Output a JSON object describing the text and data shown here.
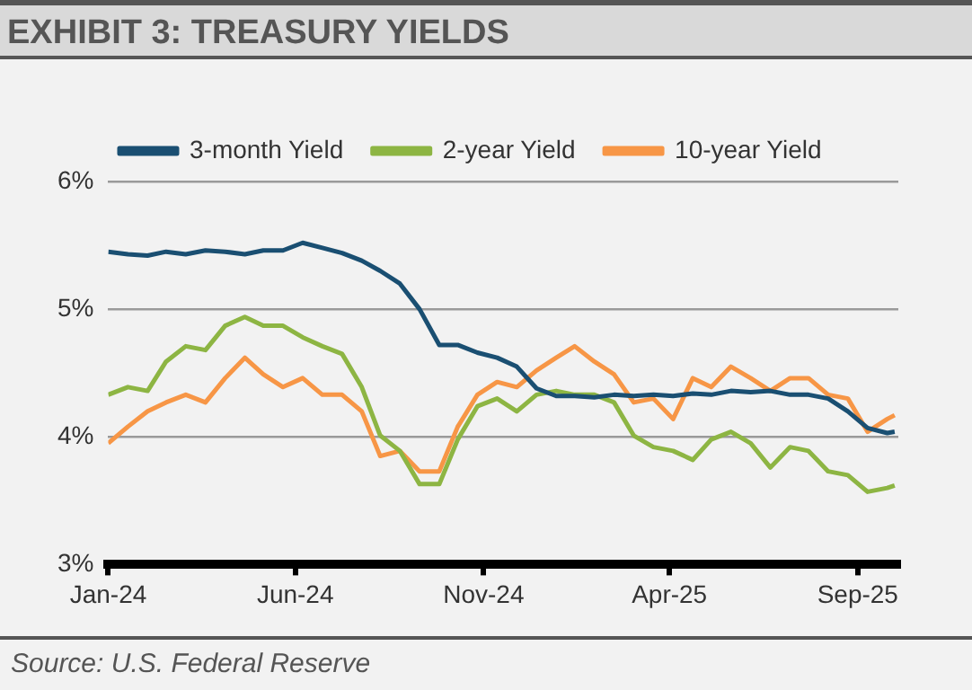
{
  "chart_data": {
    "type": "line",
    "title": "EXHIBIT 3: TREASURY YIELDS",
    "x": [
      "2024-01-01",
      "2024-01-17",
      "2024-02-02",
      "2024-02-17",
      "2024-03-04",
      "2024-03-20",
      "2024-04-05",
      "2024-04-21",
      "2024-05-06",
      "2024-05-22",
      "2024-06-07",
      "2024-06-23",
      "2024-07-09",
      "2024-07-25",
      "2024-08-09",
      "2024-08-25",
      "2024-09-10",
      "2024-09-26",
      "2024-10-11",
      "2024-10-27",
      "2024-11-12",
      "2024-11-28",
      "2024-12-14",
      "2024-12-30",
      "2025-01-14",
      "2025-01-30",
      "2025-02-15",
      "2025-03-03",
      "2025-03-19",
      "2025-04-04",
      "2025-04-20",
      "2025-05-05",
      "2025-05-21",
      "2025-06-06",
      "2025-06-22",
      "2025-07-08",
      "2025-07-23",
      "2025-08-08",
      "2025-08-24",
      "2025-09-09",
      "2025-09-25",
      "2025-10-01"
    ],
    "series": [
      {
        "name": "3-month Yield",
        "color": "#1a4f72",
        "values": [
          5.45,
          5.43,
          5.42,
          5.45,
          5.43,
          5.46,
          5.45,
          5.43,
          5.46,
          5.46,
          5.52,
          5.48,
          5.44,
          5.38,
          5.3,
          5.2,
          5.0,
          4.72,
          4.72,
          4.66,
          4.62,
          4.55,
          4.38,
          4.32,
          4.32,
          4.31,
          4.33,
          4.32,
          4.33,
          4.32,
          4.34,
          4.33,
          4.36,
          4.35,
          4.36,
          4.33,
          4.33,
          4.3,
          4.2,
          4.07,
          4.03,
          4.04
        ]
      },
      {
        "name": "2-year Yield",
        "color": "#8db543",
        "values": [
          4.33,
          4.39,
          4.36,
          4.59,
          4.71,
          4.68,
          4.87,
          4.94,
          4.87,
          4.87,
          4.78,
          4.71,
          4.65,
          4.39,
          4.01,
          3.89,
          3.63,
          3.63,
          3.98,
          4.24,
          4.3,
          4.2,
          4.33,
          4.36,
          4.33,
          4.33,
          4.27,
          4.01,
          3.92,
          3.89,
          3.82,
          3.98,
          4.04,
          3.95,
          3.76,
          3.92,
          3.89,
          3.73,
          3.7,
          3.57,
          3.6,
          3.62
        ]
      },
      {
        "name": "10-year Yield",
        "color": "#f79646",
        "values": [
          3.95,
          4.08,
          4.2,
          4.27,
          4.33,
          4.27,
          4.46,
          4.62,
          4.49,
          4.39,
          4.46,
          4.33,
          4.33,
          4.2,
          3.85,
          3.89,
          3.73,
          3.73,
          4.08,
          4.33,
          4.43,
          4.39,
          4.52,
          4.62,
          4.71,
          4.59,
          4.49,
          4.27,
          4.3,
          4.14,
          4.46,
          4.39,
          4.55,
          4.46,
          4.36,
          4.46,
          4.46,
          4.33,
          4.3,
          4.04,
          4.14,
          4.17
        ]
      }
    ],
    "xlim": [
      "2024-01-01",
      "2025-10-04"
    ],
    "xticks": [
      {
        "value": "2024-01-01",
        "label": "Jan-24"
      },
      {
        "value": "2024-06-01",
        "label": "Jun-24"
      },
      {
        "value": "2024-11-01",
        "label": "Nov-24"
      },
      {
        "value": "2025-04-01",
        "label": "Apr-25"
      },
      {
        "value": "2025-09-01",
        "label": "Sep-25"
      }
    ],
    "ylim": [
      3,
      6
    ],
    "yticks": [
      {
        "value": 3,
        "label": "3%"
      },
      {
        "value": 4,
        "label": "4%"
      },
      {
        "value": 5,
        "label": "5%"
      },
      {
        "value": 6,
        "label": "6%"
      }
    ],
    "grid": "y",
    "legend": "top",
    "marker": "none",
    "line_style": "solid",
    "annotations": [
      "Source: U.S. Federal Reserve"
    ]
  }
}
